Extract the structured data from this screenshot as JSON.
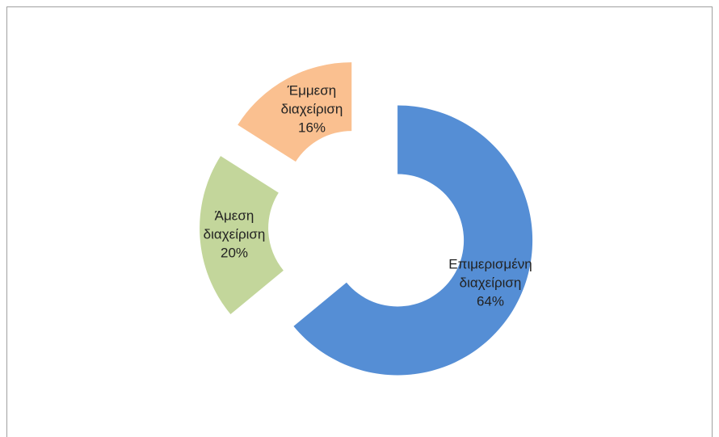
{
  "chart_data": {
    "type": "donut",
    "categories": [
      "Επιμερισμένη διαχείριση",
      "Άμεση διαχείριση",
      "Έμμεση διαχείριση"
    ],
    "values": [
      64,
      20,
      16
    ],
    "value_labels": [
      "64%",
      "20%",
      "16%"
    ],
    "colors": [
      "#558ed5",
      "#c3d69b",
      "#fac090"
    ]
  }
}
